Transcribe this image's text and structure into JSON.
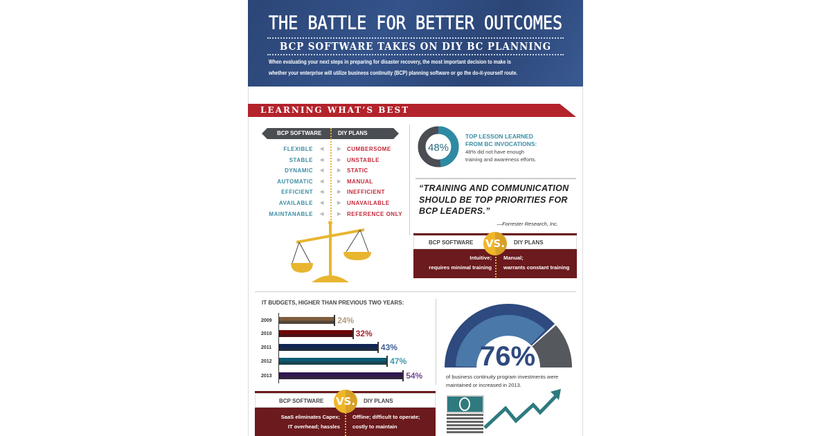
{
  "header": {
    "title": "THE BATTLE FOR BETTER OUTCOMES",
    "subtitle": "BCP SOFTWARE TAKES ON DIY BC PLANNING",
    "intro_line1": "When evaluating your next steps in preparing for disaster recovery, the most important decision to make is",
    "intro_line2": "whether your enterprise will utilize business continuity (BCP) planning software or go the do-it-yourself route."
  },
  "section": {
    "title": "LEARNING WHAT’S BEST"
  },
  "compare": {
    "left_header": "BCP SOFTWARE",
    "right_header": "DIY PLANS",
    "rows": [
      {
        "left": "FLEXIBLE",
        "right": "CUMBERSOME"
      },
      {
        "left": "STABLE",
        "right": "UNSTABLE"
      },
      {
        "left": "DYNAMIC",
        "right": "STATIC"
      },
      {
        "left": "AUTOMATIC",
        "right": "MANUAL"
      },
      {
        "left": "EFFICIENT",
        "right": "INEFFICIENT"
      },
      {
        "left": "AVAILABLE",
        "right": "UNAVAILABLE"
      },
      {
        "left": "MAINTANABLE",
        "right": "REFERENCE ONLY"
      }
    ]
  },
  "lesson": {
    "percent": "48%",
    "value": 48,
    "title1": "TOP LESSON LEARNED",
    "title2": "FROM BC INVOCATIONS:",
    "text1": "48% did not have enough",
    "text2": "training and awareness efforts."
  },
  "quote": {
    "line1": "“TRAINING AND COMMUNICATION",
    "line2": "SHOULD BE TOP PRIORITIES FOR",
    "line3": "BCP LEADERS.”",
    "attribution": "—Forrester Research, Inc."
  },
  "vs1": {
    "left": "BCP SOFTWARE",
    "right": "DIY PLANS",
    "vs": "VS.",
    "left_text1": "Intuitive;",
    "left_text2": "requires minimal training",
    "right_text1": "Manual;",
    "right_text2": "warrants constant training"
  },
  "chart_data": {
    "type": "bar",
    "orientation": "horizontal",
    "title": "IT BUDGETS, HIGHER THAN PREVIOUS TWO YEARS:",
    "categories": [
      "2009",
      "2010",
      "2011",
      "2012",
      "2013"
    ],
    "values": [
      24,
      32,
      43,
      47,
      54
    ],
    "labels": [
      "24%",
      "32%",
      "43%",
      "47%",
      "54%"
    ],
    "colors": [
      "#b39a7c",
      "#a8232c",
      "#3d5f92",
      "#3a98ad",
      "#6f4c91"
    ]
  },
  "gauge": {
    "percent": "76%",
    "value": 76,
    "caption1": "of business continuity program investments were",
    "caption2": "maintained or increased in 2013."
  },
  "vs2": {
    "left": "BCP SOFTWARE",
    "right": "DIY PLANS",
    "vs": "VS.",
    "left_text1": "SaaS eliminates Capex;",
    "left_text2": "IT overhead; hassles",
    "right_text1": "Offline; difficult to operate;",
    "right_text2": "costly to maintain"
  },
  "colors": {
    "blue": "#2e4a7e",
    "red": "#b3232b",
    "maroon": "#6b1a1d",
    "teal": "#3b8ea5",
    "gold": "#f0b629"
  }
}
